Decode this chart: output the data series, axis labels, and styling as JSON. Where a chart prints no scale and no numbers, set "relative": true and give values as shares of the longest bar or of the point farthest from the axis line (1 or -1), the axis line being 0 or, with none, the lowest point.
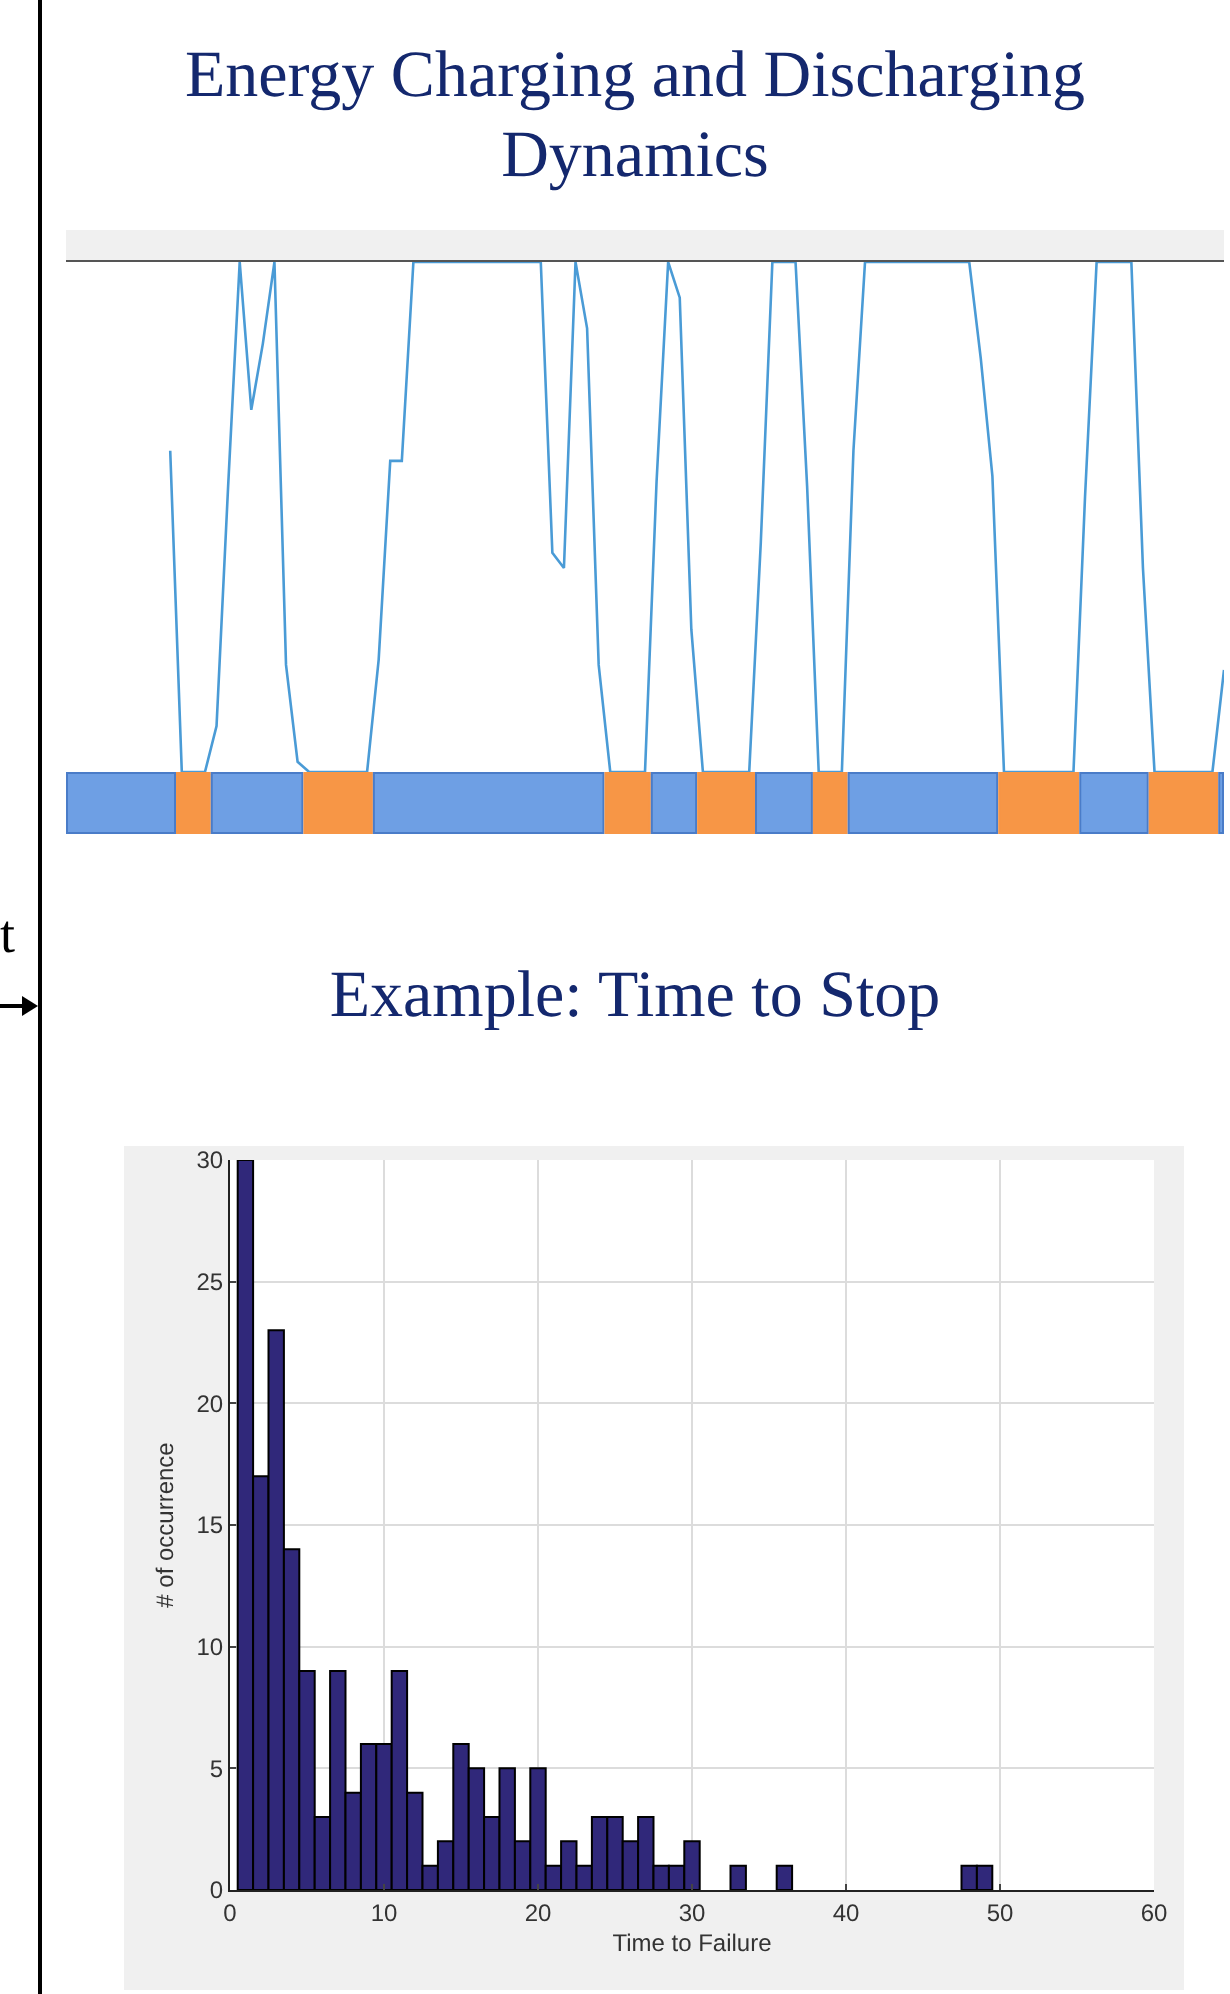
{
  "chart_data": [
    {
      "type": "line",
      "title": "Energy Charging and Discharging Dynamics",
      "relative": true,
      "annotations": [
        "t"
      ],
      "categories": [
        null,
        null,
        null,
        null,
        null,
        null,
        null,
        null,
        null,
        null,
        null,
        null,
        null,
        null,
        null,
        null,
        null,
        null,
        null,
        null,
        null,
        null,
        null,
        null,
        null,
        null,
        null,
        null,
        null,
        null,
        null,
        null,
        null,
        null,
        null,
        null,
        null,
        null,
        null,
        null,
        null,
        null,
        null,
        null,
        null,
        null,
        null,
        null,
        null,
        null,
        null,
        null,
        null,
        null,
        null,
        null,
        null,
        null,
        null,
        null,
        null,
        null,
        null,
        null,
        null,
        null,
        null,
        null,
        null,
        null,
        null,
        null,
        null,
        null,
        null,
        null,
        null,
        null,
        null,
        null,
        null,
        null,
        null,
        null,
        null,
        null,
        null,
        null,
        null,
        null,
        null,
        null,
        null,
        null,
        null,
        null,
        null,
        null,
        null,
        null,
        null
      ],
      "series": [
        {
          "color": "#4a9bd6",
          "values": [
            null,
            null,
            null,
            null,
            null,
            null,
            null,
            null,
            null,
            0.63,
            0,
            0,
            0,
            0.09,
            0.56,
            1,
            0.71,
            0.84,
            1,
            0.21,
            0.02,
            0,
            0,
            0,
            0,
            0,
            0,
            0.22,
            0.61,
            0.61,
            1,
            1,
            1,
            1,
            1,
            1,
            1,
            1,
            1,
            1,
            1,
            1,
            0.43,
            0.4,
            1,
            0.87,
            0.21,
            0,
            0,
            0,
            0,
            0.57,
            1,
            0.93,
            0.28,
            0,
            0,
            0,
            0,
            0,
            0.45,
            1,
            1,
            1,
            0.56,
            0,
            0,
            0,
            0.63,
            1,
            1,
            1,
            1,
            1,
            1,
            1,
            1,
            1,
            1,
            0.81,
            0.58,
            0,
            0,
            0,
            0,
            0,
            0,
            0,
            0.54,
            1,
            1,
            1,
            1,
            0.4,
            0,
            0,
            0,
            0,
            0,
            0,
            0.2
          ]
        }
      ]
    },
    {
      "type": "histogram",
      "title": "Example: Time to Stop",
      "xlabel": "Time to Failure",
      "ylabel": "# of occurrence",
      "color": "#30287a",
      "grid": true,
      "bins": [
        0.5,
        1.5,
        2.5,
        3.5,
        4.5,
        5.5,
        6.5,
        7.5,
        8.5,
        9.5,
        10.5,
        11.5,
        12.5,
        13.5,
        14.5,
        15.5,
        16.5,
        17.5,
        18.5,
        19.5,
        20.5,
        21.5,
        22.5,
        23.5,
        24.5,
        25.5,
        26.5,
        27.5,
        28.5,
        29.5,
        30.5,
        31.5,
        32.5,
        33.5,
        34.5,
        35.5,
        36.5,
        37.5,
        38.5,
        39.5,
        40.5,
        41.5,
        42.5,
        43.5,
        44.5,
        45.5,
        46.5,
        47.5,
        48.5,
        49.5
      ],
      "values": [
        30,
        17,
        23,
        14,
        9,
        3,
        9,
        4,
        6,
        6,
        9,
        4,
        1,
        2,
        6,
        5,
        3,
        5,
        2,
        5,
        1,
        2,
        1,
        3,
        3,
        2,
        3,
        1,
        1,
        2,
        0,
        0,
        1,
        0,
        0,
        1,
        0,
        0,
        0,
        0,
        0,
        0,
        0,
        0,
        0,
        0,
        0,
        1,
        1
      ],
      "xlim": [
        0,
        60
      ],
      "xticks": [
        0,
        10,
        20,
        30,
        40,
        50,
        60
      ],
      "ylim": [
        0,
        30
      ],
      "yticks": [
        0,
        5,
        10,
        15,
        20,
        25,
        30
      ]
    }
  ]
}
